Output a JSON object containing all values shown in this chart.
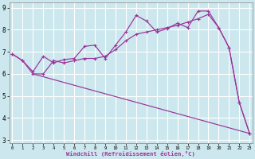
{
  "bg_color": "#cce8ee",
  "grid_color": "#ffffff",
  "line_color": "#993399",
  "xlim": [
    -0.3,
    23.3
  ],
  "ylim": [
    2.85,
    9.25
  ],
  "xticks": [
    0,
    1,
    2,
    3,
    4,
    5,
    6,
    7,
    8,
    9,
    10,
    11,
    12,
    13,
    14,
    15,
    16,
    17,
    18,
    19,
    20,
    21,
    22,
    23
  ],
  "yticks": [
    3,
    4,
    5,
    6,
    7,
    8,
    9
  ],
  "xlabel": "Windchill (Refroidissement éolien,°C)",
  "line1_x": [
    0,
    1,
    2,
    3,
    4,
    5,
    6,
    7,
    8,
    9,
    10,
    11,
    12,
    13,
    14,
    15,
    16,
    17,
    18,
    19,
    20,
    21,
    22,
    23
  ],
  "line1_y": [
    6.9,
    6.6,
    6.1,
    6.8,
    6.5,
    6.65,
    6.7,
    7.25,
    7.3,
    6.7,
    7.3,
    7.9,
    8.65,
    8.4,
    7.9,
    8.05,
    8.3,
    8.1,
    8.85,
    8.85,
    8.1,
    7.2,
    4.7,
    3.3
  ],
  "line2_x": [
    0,
    1,
    2,
    3,
    4,
    5,
    6,
    7,
    8,
    9,
    10,
    11,
    12,
    13,
    14,
    15,
    16,
    17,
    18,
    19,
    20,
    21,
    22,
    23
  ],
  "line2_y": [
    6.9,
    6.6,
    6.0,
    6.0,
    6.6,
    6.5,
    6.6,
    6.7,
    6.7,
    6.8,
    7.1,
    7.5,
    7.8,
    7.9,
    8.0,
    8.1,
    8.2,
    8.35,
    8.5,
    8.7,
    8.1,
    7.2,
    4.7,
    3.3
  ],
  "line3_x": [
    2,
    23
  ],
  "line3_y": [
    6.0,
    3.3
  ]
}
